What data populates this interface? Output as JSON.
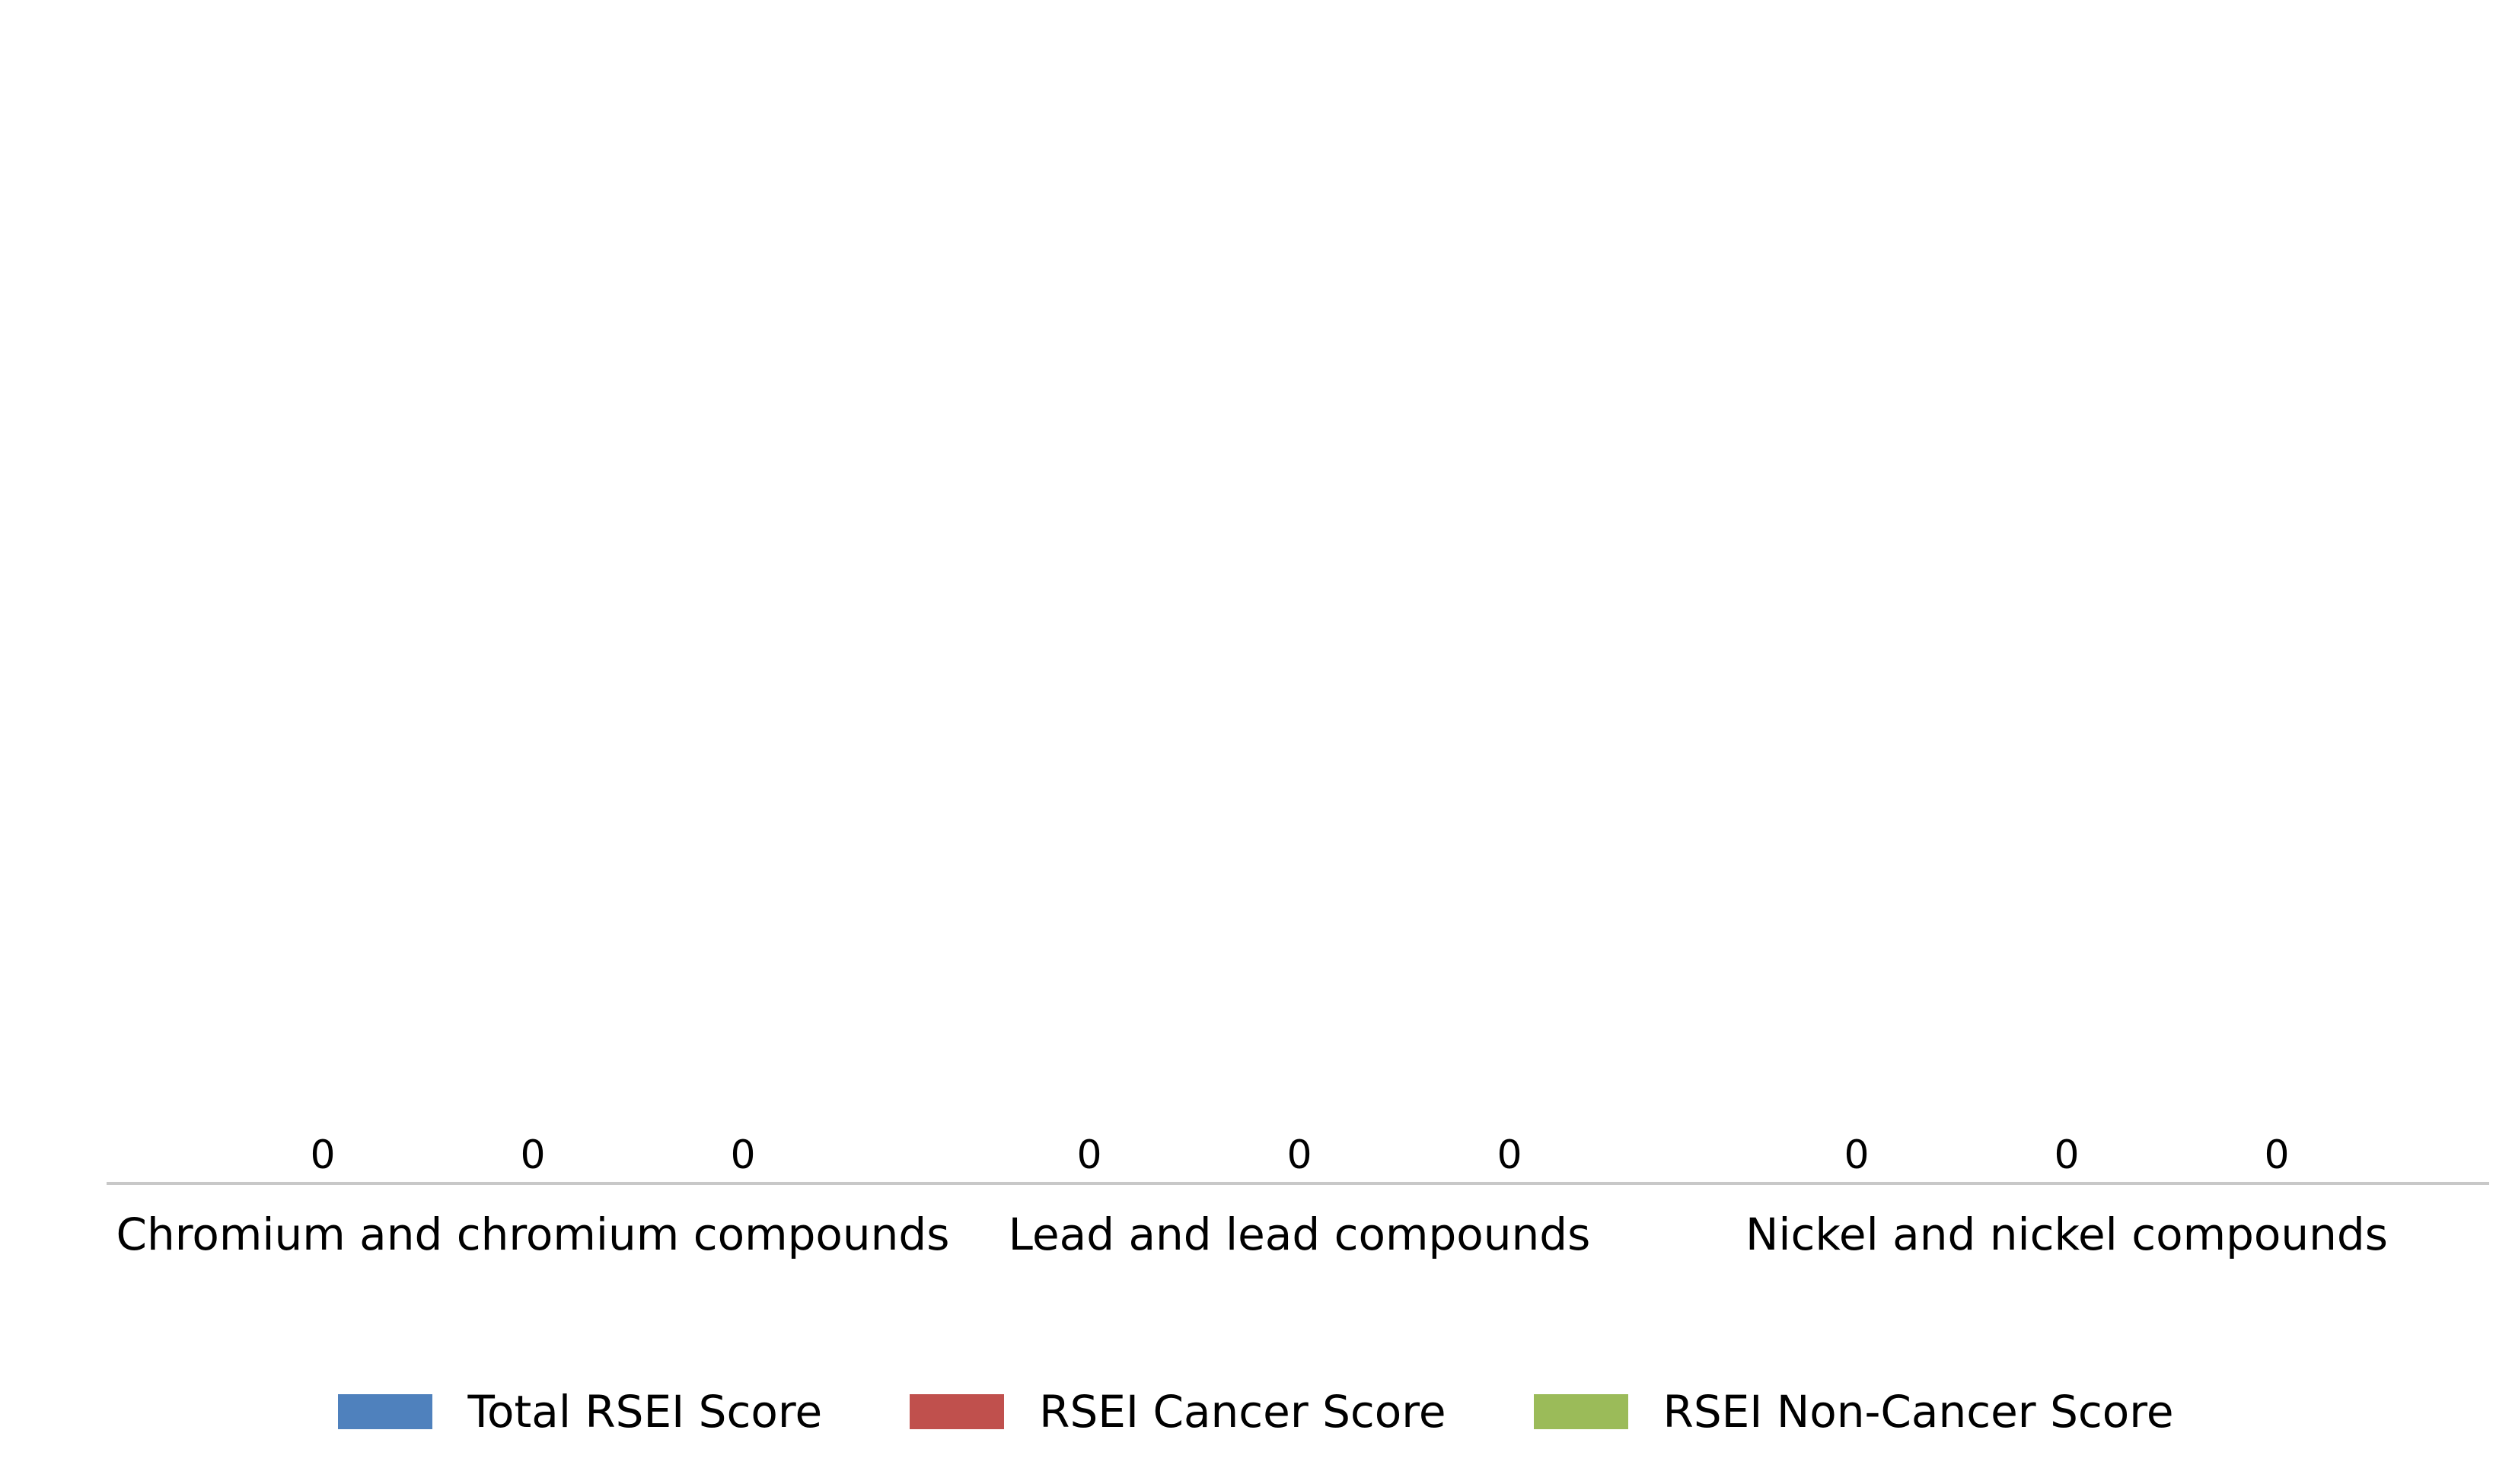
{
  "chart_data": {
    "type": "bar",
    "categories": [
      "Chromium and chromium compounds",
      "Lead and lead compounds",
      "Nickel and nickel compounds"
    ],
    "series": [
      {
        "name": "Total RSEI Score",
        "values": [
          0,
          0,
          0
        ],
        "color": "#4f81bd"
      },
      {
        "name": "RSEI Cancer Score",
        "values": [
          0,
          0,
          0
        ],
        "color": "#c0504d"
      },
      {
        "name": "RSEI Non-Cancer Score",
        "values": [
          0,
          0,
          0
        ],
        "color": "#9bbb59"
      }
    ],
    "data_labels": true,
    "grid": false,
    "legend_position": "bottom",
    "axis_color": "#c8c8c8"
  }
}
